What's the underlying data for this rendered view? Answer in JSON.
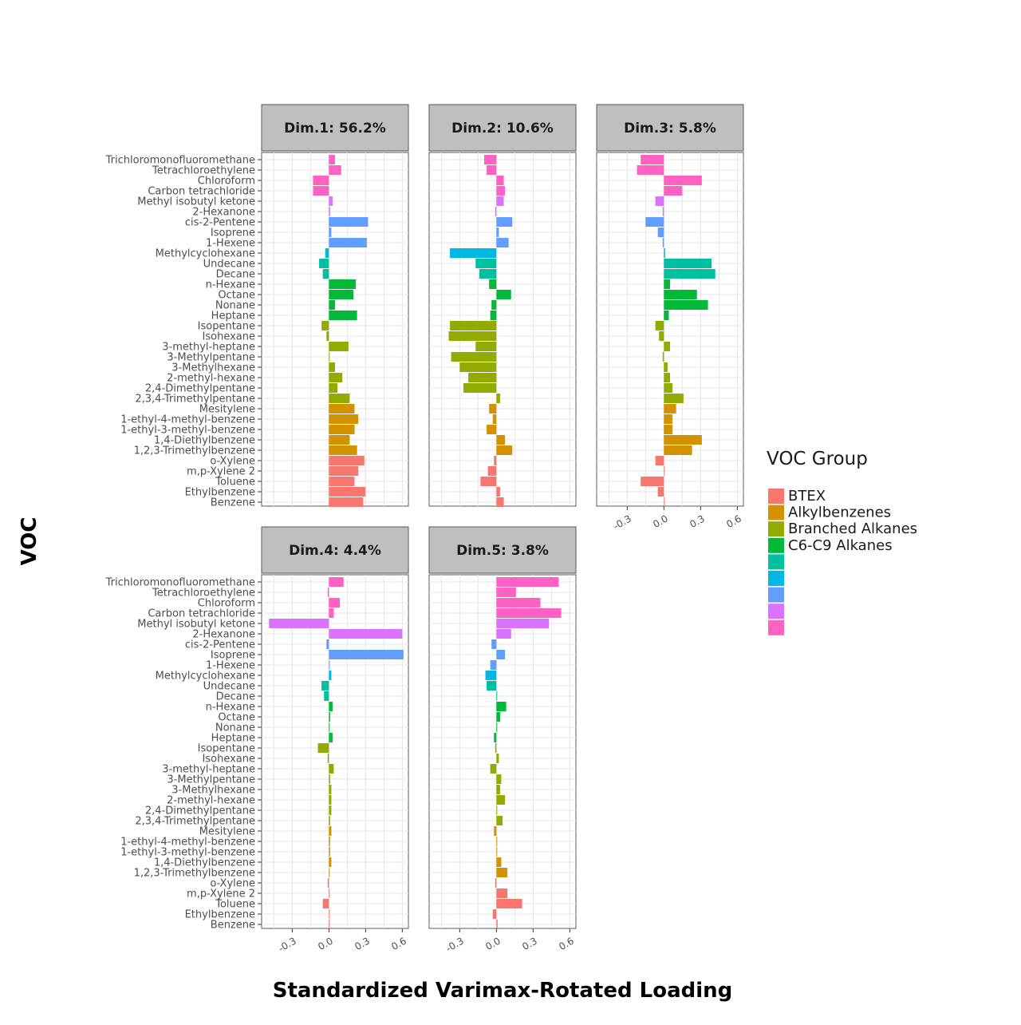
{
  "chart_data": {
    "type": "bar",
    "orientation": "horizontal",
    "facet_layout": "3 columns x 2 rows",
    "xlabel": "Standardized Varimax-Rotated Loading",
    "ylabel": "VOC",
    "xlim": [
      -0.55,
      0.65
    ],
    "xticks": [
      -0.3,
      0.0,
      0.3,
      0.6
    ],
    "xtick_labels": [
      "-0.3",
      "0.0",
      "0.3",
      "0.6"
    ],
    "grid": true,
    "legend_title": "VOC Group",
    "legend_position": "right",
    "legend": [
      {
        "label": "BTEX",
        "color": "#F8766D"
      },
      {
        "label": "Alkylbenzenes",
        "color": "#D39200"
      },
      {
        "label": "Branched Alkanes",
        "color": "#93AA00"
      },
      {
        "label": "C6-C9 Alkanes",
        "color": "#00BA38"
      },
      {
        "label": "",
        "color": "#00C19F"
      },
      {
        "label": "",
        "color": "#00B9E3"
      },
      {
        "label": "",
        "color": "#619CFF"
      },
      {
        "label": "",
        "color": "#DB72FB"
      },
      {
        "label": "",
        "color": "#FF61C3"
      }
    ],
    "categories": [
      "Trichloromonofluoromethane",
      "Tetrachloroethylene",
      "Chloroform",
      "Carbon tetrachloride",
      "Methyl isobutyl ketone",
      "2-Hexanone",
      "cis-2-Pentene",
      "Isoprene",
      "1-Hexene",
      "Methylcyclohexane",
      "Undecane",
      "Decane",
      "n-Hexane",
      "Octane",
      "Nonane",
      "Heptane",
      "Isopentane",
      "Isohexane",
      "3-methyl-heptane",
      "3-Methylpentane",
      "3-Methylhexane",
      "2-methyl-hexane",
      "2,4-Dimethylpentane",
      "2,3,4-Trimethylpentane",
      "Mesitylene",
      "1-ethyl-4-methyl-benzene",
      "1-ethyl-3-methyl-benzene",
      "1,4-Diethylbenzene",
      "1,2,3-Trimethylbenzene",
      "o-Xylene",
      "m,p-Xylene 2",
      "Toluene",
      "Ethylbenzene",
      "Benzene"
    ],
    "category_group_index": [
      8,
      8,
      8,
      8,
      7,
      7,
      6,
      6,
      6,
      5,
      4,
      4,
      3,
      3,
      3,
      3,
      2,
      2,
      2,
      2,
      2,
      2,
      2,
      2,
      1,
      1,
      1,
      1,
      1,
      0,
      0,
      0,
      0,
      0
    ],
    "series": [
      {
        "name": "Dim.1: 56.2%",
        "values": [
          0.05,
          0.1,
          -0.13,
          -0.13,
          0.03,
          0.01,
          0.32,
          0.02,
          0.31,
          -0.03,
          -0.08,
          -0.05,
          0.22,
          0.2,
          0.05,
          0.23,
          -0.06,
          -0.02,
          0.16,
          0.0,
          0.05,
          0.11,
          0.07,
          0.17,
          0.21,
          0.24,
          0.21,
          0.17,
          0.23,
          0.29,
          0.24,
          0.21,
          0.3,
          0.28
        ]
      },
      {
        "name": "Dim.2: 10.6%",
        "values": [
          -0.1,
          -0.08,
          0.06,
          0.07,
          0.06,
          -0.01,
          0.13,
          0.02,
          0.1,
          -0.38,
          -0.17,
          -0.14,
          -0.06,
          0.12,
          -0.04,
          -0.05,
          -0.38,
          -0.39,
          -0.17,
          -0.37,
          -0.3,
          -0.23,
          -0.27,
          0.03,
          -0.06,
          -0.03,
          -0.08,
          0.07,
          0.13,
          -0.02,
          -0.07,
          -0.13,
          0.03,
          0.06
        ]
      },
      {
        "name": "Dim.3: 5.8%",
        "values": [
          -0.19,
          -0.22,
          0.31,
          0.15,
          -0.07,
          -0.01,
          -0.15,
          -0.05,
          -0.01,
          0.01,
          0.39,
          0.42,
          0.05,
          0.27,
          0.36,
          0.04,
          -0.07,
          -0.04,
          0.05,
          -0.01,
          0.03,
          0.05,
          0.07,
          0.16,
          0.1,
          0.07,
          0.07,
          0.31,
          0.23,
          -0.07,
          0.0,
          -0.19,
          -0.05,
          0.0
        ]
      },
      {
        "name": "Dim.4: 4.4%",
        "values": [
          0.12,
          -0.01,
          0.09,
          0.04,
          -0.49,
          0.6,
          -0.02,
          0.61,
          0.0,
          0.02,
          -0.06,
          -0.04,
          0.03,
          0.01,
          0.0,
          0.03,
          -0.09,
          -0.01,
          0.04,
          0.01,
          0.02,
          0.02,
          0.02,
          0.01,
          0.02,
          0.01,
          0.01,
          0.02,
          0.0,
          -0.01,
          0.0,
          -0.05,
          0.0,
          0.0
        ]
      },
      {
        "name": "Dim.5: 3.8%",
        "values": [
          0.51,
          0.16,
          0.36,
          0.53,
          0.43,
          0.12,
          -0.04,
          0.07,
          -0.05,
          -0.09,
          -0.08,
          0.0,
          0.08,
          0.03,
          0.0,
          -0.02,
          -0.01,
          0.02,
          -0.05,
          0.04,
          0.03,
          0.07,
          0.0,
          0.05,
          -0.02,
          0.0,
          0.0,
          0.04,
          0.09,
          -0.01,
          0.09,
          0.21,
          -0.03,
          0.01
        ]
      }
    ]
  },
  "style": {
    "strip_fill": "#bfbfbf",
    "grid_color": "#e5e5e5",
    "panel_border": "#595959"
  }
}
